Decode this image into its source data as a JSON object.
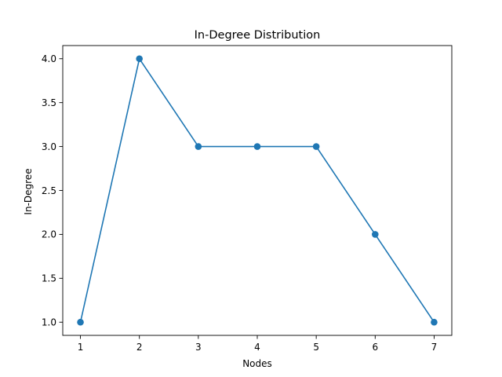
{
  "chart_data": {
    "type": "line",
    "title": "In-Degree Distribution",
    "xlabel": "Nodes",
    "ylabel": "In-Degree",
    "x": [
      1,
      2,
      3,
      4,
      5,
      6,
      7
    ],
    "series": [
      {
        "values": [
          1.0,
          4.0,
          3.0,
          3.0,
          3.0,
          2.0,
          1.0
        ],
        "color": "#1f77b4",
        "marker": "circle"
      }
    ],
    "xlim": [
      0.7,
      7.3
    ],
    "ylim": [
      0.85,
      4.15
    ],
    "xticks": [
      1,
      2,
      3,
      4,
      5,
      6,
      7
    ],
    "xtick_labels": [
      "1",
      "2",
      "3",
      "4",
      "5",
      "6",
      "7"
    ],
    "yticks": [
      1.0,
      1.5,
      2.0,
      2.5,
      3.0,
      3.5,
      4.0
    ],
    "ytick_labels": [
      "1.0",
      "1.5",
      "2.0",
      "2.5",
      "3.0",
      "3.5",
      "4.0"
    ],
    "grid": false,
    "legend": false
  }
}
